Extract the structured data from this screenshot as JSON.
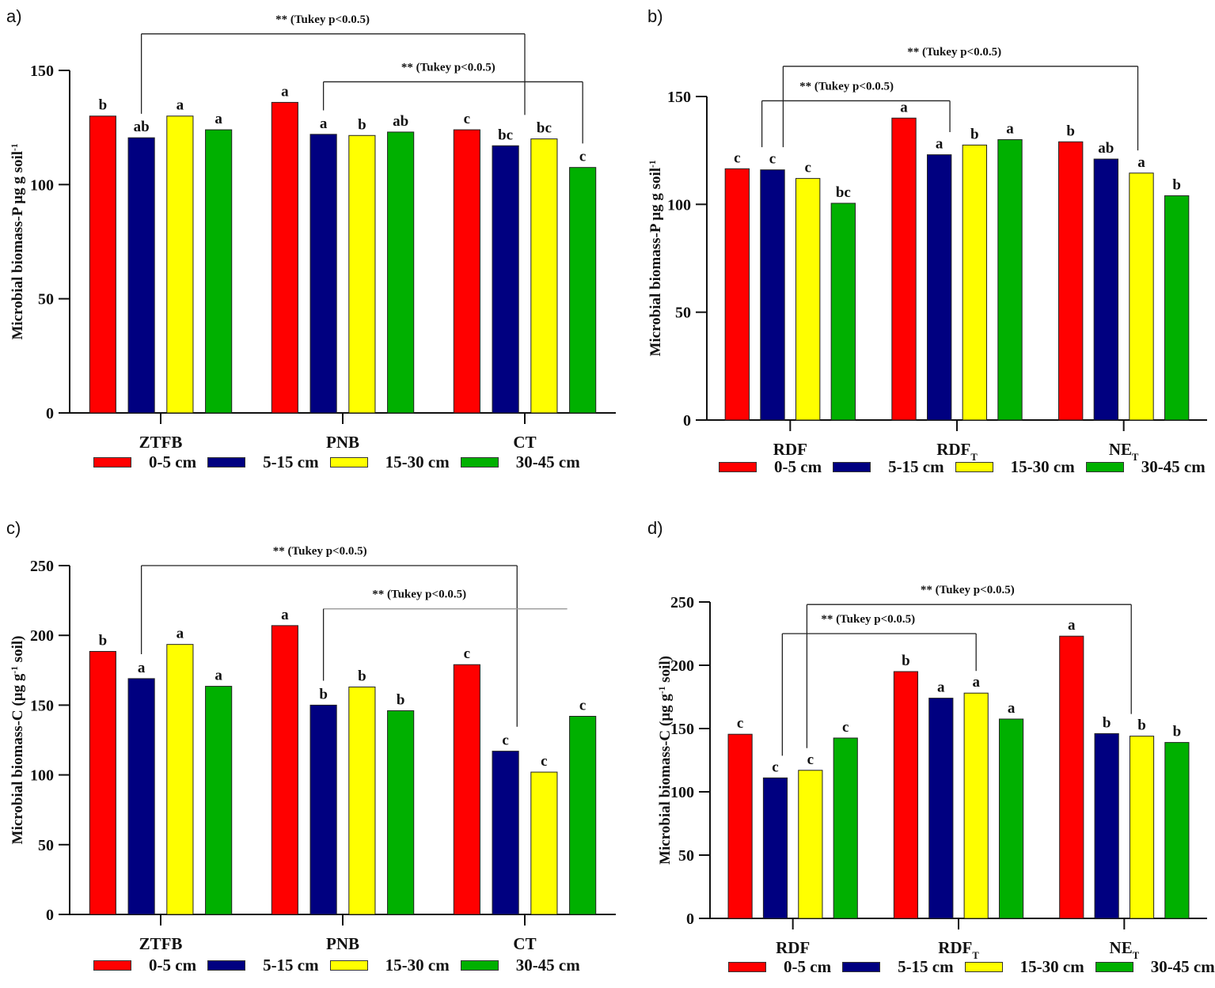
{
  "colors": {
    "0-5 cm": "#ff0000",
    "5-15 cm": "#000080",
    "15-30 cm": "#ffff00",
    "30-45 cm": "#00b000"
  },
  "chart_data": [
    {
      "id": "a",
      "panel_label": "a)",
      "type": "bar",
      "ylim": [
        0,
        150
      ],
      "yticks": [
        "0",
        "50",
        "100",
        "150"
      ],
      "ylabel": [
        {
          "t": "Microbial biomass-P µg g soil"
        },
        {
          "t": "-1",
          "sup": true
        }
      ],
      "categories": [
        [
          {
            "t": "ZTFB"
          }
        ],
        [
          {
            "t": "PNB"
          }
        ],
        [
          {
            "t": "CT"
          }
        ]
      ],
      "series": [
        {
          "name": "0-5 cm",
          "values": [
            130,
            136,
            124
          ]
        },
        {
          "name": "5-15 cm",
          "values": [
            120.5,
            122,
            117
          ]
        },
        {
          "name": "15-30 cm",
          "values": [
            130,
            121.5,
            120
          ]
        },
        {
          "name": "30-45 cm",
          "values": [
            124,
            123,
            107.5
          ]
        }
      ],
      "letters": [
        [
          "b",
          "ab",
          "a",
          "a"
        ],
        [
          "a",
          "a",
          "b",
          "ab"
        ],
        [
          "c",
          "bc",
          "bc",
          "c"
        ]
      ],
      "brackets": [
        {
          "from": [
            0,
            1
          ],
          "to": [
            2,
            1.5
          ],
          "level": 166,
          "label": "** (Tukey p<0.0.5)",
          "labelAt": 0.35
        },
        {
          "from": [
            1,
            1
          ],
          "to": [
            2,
            3
          ],
          "level": 145,
          "label": "** (Tukey p<0.0.5)",
          "labelAt": 0.3
        }
      ],
      "legend": [
        "0-5 cm",
        "5-15 cm",
        "15-30 cm",
        "30-45 cm"
      ]
    },
    {
      "id": "b",
      "panel_label": "b)",
      "type": "bar",
      "ylim": [
        0,
        150
      ],
      "yticks": [
        "0",
        "50",
        "100",
        "150"
      ],
      "ylabel": [
        {
          "t": "Microbial biomass-P µg g soil"
        },
        {
          "t": "-1",
          "sup": true
        }
      ],
      "categories": [
        [
          {
            "t": "RDF"
          }
        ],
        [
          {
            "t": "RDF"
          },
          {
            "t": "T",
            "sub": true
          }
        ],
        [
          {
            "t": "NE"
          },
          {
            "t": "T",
            "sub": true
          }
        ]
      ],
      "series": [
        {
          "name": "0-5 cm",
          "values": [
            116.5,
            140,
            129
          ]
        },
        {
          "name": "5-15 cm",
          "values": [
            116,
            123,
            121
          ]
        },
        {
          "name": "15-30 cm",
          "values": [
            112,
            127.5,
            114.5
          ]
        },
        {
          "name": "30-45 cm",
          "values": [
            100.5,
            130,
            104
          ]
        }
      ],
      "letters": [
        [
          "c",
          "c",
          "c",
          "bc"
        ],
        [
          "a",
          "a",
          "b",
          "a"
        ],
        [
          "b",
          "ab",
          "a",
          "b"
        ]
      ],
      "brackets": [
        {
          "from": [
            0,
            1.3
          ],
          "to": [
            2,
            1.9
          ],
          "level": 164,
          "label": "** (Tukey p<0.0.5)",
          "labelAt": 0.35
        },
        {
          "from": [
            0,
            0.7
          ],
          "to": [
            1,
            1.3
          ],
          "level": 148,
          "label": "** (Tukey p<0.0.5)",
          "labelAt": 0.2
        }
      ],
      "legend": [
        "0-5 cm",
        "5-15 cm",
        "15-30 cm",
        "30-45 cm"
      ]
    },
    {
      "id": "c",
      "panel_label": "c)",
      "type": "bar",
      "ylim": [
        0,
        250
      ],
      "yticks": [
        "0",
        "50",
        "100",
        "150",
        "200",
        "250"
      ],
      "ylabel": [
        {
          "t": "Microbial biomass-C (µg g"
        },
        {
          "t": "-1",
          "sup": true
        },
        {
          "t": " soil)"
        }
      ],
      "categories": [
        [
          {
            "t": "ZTFB"
          }
        ],
        [
          {
            "t": "PNB"
          }
        ],
        [
          {
            "t": "CT"
          }
        ]
      ],
      "series": [
        {
          "name": "0-5 cm",
          "values": [
            188.5,
            207,
            179
          ]
        },
        {
          "name": "5-15 cm",
          "values": [
            169,
            150,
            117
          ]
        },
        {
          "name": "15-30 cm",
          "values": [
            193.5,
            163,
            102
          ]
        },
        {
          "name": "30-45 cm",
          "values": [
            163.5,
            146,
            142
          ]
        }
      ],
      "letters": [
        [
          "b",
          "a",
          "a",
          "a"
        ],
        [
          "a",
          "b",
          "b",
          "b"
        ],
        [
          "c",
          "c",
          "c",
          "c"
        ]
      ],
      "brackets": [
        {
          "from": [
            0,
            1
          ],
          "to": [
            2,
            1.3
          ],
          "level": 250,
          "label": "** (Tukey p<0.0.5)",
          "labelAt": 0.35
        },
        {
          "from": [
            1,
            1
          ],
          "to": [
            2,
            2.6
          ],
          "level": 219,
          "label": "** (Tukey p<0.0.5)",
          "labelAt": 0.2,
          "noRightDrop": true
        }
      ],
      "legend": [
        "0-5 cm",
        "5-15 cm",
        "15-30 cm",
        "30-45 cm"
      ]
    },
    {
      "id": "d",
      "panel_label": "d)",
      "type": "bar",
      "ylim": [
        0,
        250
      ],
      "yticks": [
        "0",
        "50",
        "100",
        "150",
        "200",
        "250"
      ],
      "ylabel": [
        {
          "t": "Microbial biomass-C (µg g"
        },
        {
          "t": "-1",
          "sup": true
        },
        {
          "t": " soil)"
        }
      ],
      "categories": [
        [
          {
            "t": "RDF"
          }
        ],
        [
          {
            "t": "RDF"
          },
          {
            "t": "T",
            "sub": true
          }
        ],
        [
          {
            "t": "NE"
          },
          {
            "t": "T",
            "sub": true
          }
        ]
      ],
      "series": [
        {
          "name": "0-5 cm",
          "values": [
            145.5,
            195,
            223
          ]
        },
        {
          "name": "5-15 cm",
          "values": [
            111,
            174,
            146
          ]
        },
        {
          "name": "15-30 cm",
          "values": [
            117,
            178,
            144
          ]
        },
        {
          "name": "30-45 cm",
          "values": [
            142.5,
            157.5,
            139
          ]
        }
      ],
      "letters": [
        [
          "c",
          "c",
          "c",
          "c"
        ],
        [
          "b",
          "a",
          "a",
          "a"
        ],
        [
          "a",
          "b",
          "b",
          "b"
        ]
      ],
      "brackets": [
        {
          "from": [
            0,
            1.9
          ],
          "to": [
            2,
            1.7
          ],
          "level": 248,
          "label": "** (Tukey p<0.0.5)",
          "labelAt": 0.35
        },
        {
          "from": [
            0,
            1.2
          ],
          "to": [
            1,
            2
          ],
          "level": 225,
          "label": "** (Tukey p<0.0.5)",
          "labelAt": 0.2
        }
      ],
      "legend": [
        "0-5 cm",
        "5-15 cm",
        "15-30 cm",
        "30-45 cm"
      ]
    }
  ]
}
